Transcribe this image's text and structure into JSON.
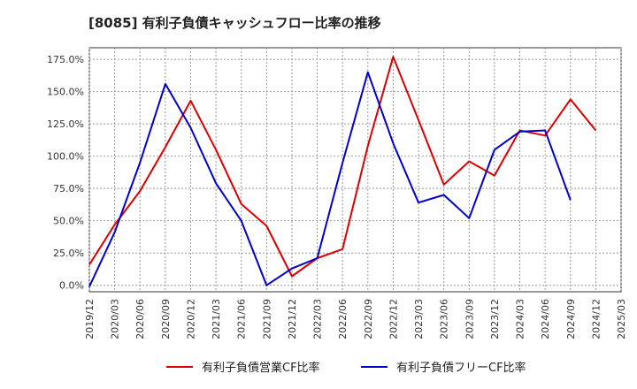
{
  "chart_data": {
    "type": "line",
    "title": "[8085]  有利子負債キャッシュフロー比率の推移",
    "xlabel": "",
    "ylabel": "",
    "x_ticks": [
      "2019/12",
      "2020/03",
      "2020/06",
      "2020/09",
      "2020/12",
      "2021/03",
      "2021/06",
      "2021/09",
      "2021/12",
      "2022/03",
      "2022/06",
      "2022/09",
      "2022/12",
      "2023/03",
      "2023/06",
      "2023/09",
      "2023/12",
      "2024/03",
      "2024/06",
      "2024/09",
      "2024/12",
      "2025/03"
    ],
    "y_ticks": [
      "0.0%",
      "25.0%",
      "50.0%",
      "75.0%",
      "100.0%",
      "125.0%",
      "150.0%",
      "175.0%"
    ],
    "ylim": [
      -5,
      184
    ],
    "grid": true,
    "legend_position": "bottom",
    "series": [
      {
        "name": "有利子負債営業CF比率",
        "color": "#dd0000",
        "values": [
          16,
          47,
          73,
          107,
          143,
          105,
          63,
          46,
          7,
          21,
          28,
          108,
          177,
          128,
          78,
          96,
          85,
          120,
          116,
          144,
          120,
          null
        ]
      },
      {
        "name": "有利子負債フリーCF比率",
        "color": "#0000cc",
        "values": [
          -1,
          41,
          95,
          156,
          122,
          79,
          50,
          0,
          13,
          21,
          95,
          165,
          110,
          64,
          70,
          52,
          105,
          119,
          120,
          66,
          null,
          null
        ]
      }
    ]
  }
}
